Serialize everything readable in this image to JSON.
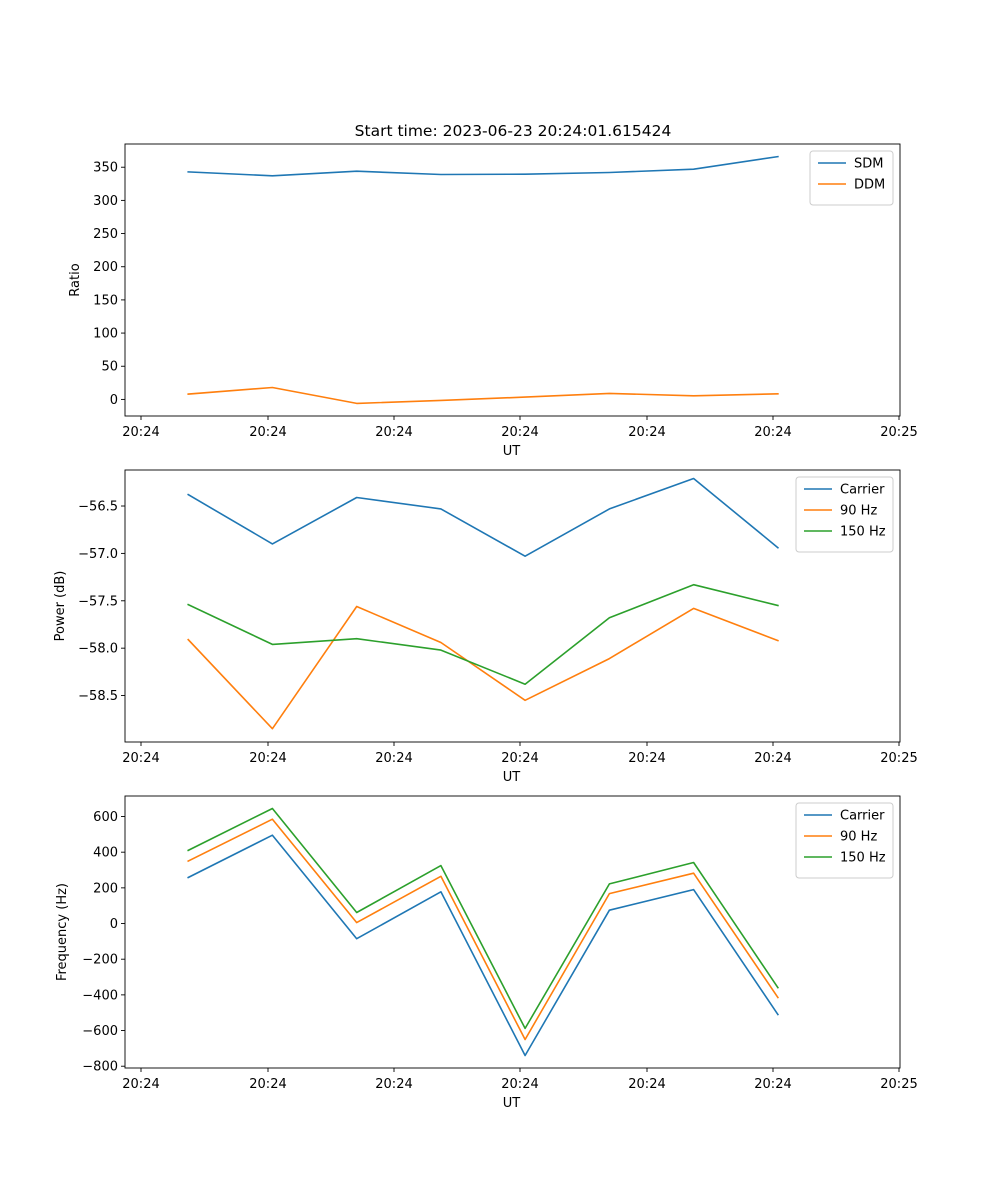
{
  "figure": {
    "title": "Start time: 2023-06-23 20:24:01.615424"
  },
  "chart_data": [
    {
      "type": "line",
      "title": "Start time: 2023-06-23 20:24:01.615424",
      "xlabel": "UT",
      "ylabel": "Ratio",
      "x_tick_labels": [
        "20:24",
        "20:24",
        "20:24",
        "20:24",
        "20:24",
        "20:24",
        "20:25"
      ],
      "y_ticks": [
        0,
        50,
        100,
        150,
        200,
        250,
        300,
        350
      ],
      "xlim": [
        0,
        9.2
      ],
      "ylim": [
        -25,
        385
      ],
      "legend": "top-right",
      "grid": false,
      "x": [
        0.75,
        1.75,
        2.75,
        3.75,
        4.75,
        5.75,
        6.75,
        7.75
      ],
      "series": [
        {
          "name": "SDM",
          "color": "#1f77b4",
          "values": [
            343,
            337,
            344,
            339,
            339.5,
            342,
            347,
            366
          ]
        },
        {
          "name": "DDM",
          "color": "#ff7f0e",
          "values": [
            8,
            18,
            -6,
            -1.5,
            3.5,
            9,
            5.5,
            8.5
          ]
        }
      ]
    },
    {
      "type": "line",
      "xlabel": "UT",
      "ylabel": "Power (dB)",
      "x_tick_labels": [
        "20:24",
        "20:24",
        "20:24",
        "20:24",
        "20:24",
        "20:24",
        "20:25"
      ],
      "y_ticks": [
        -56.5,
        -57.0,
        -57.5,
        -58.0,
        -58.5
      ],
      "y_tick_labels": [
        "−56.5",
        "−57.0",
        "−57.5",
        "−58.0",
        "−58.5"
      ],
      "xlim": [
        0,
        9.2
      ],
      "ylim": [
        -58.99,
        -56.12
      ],
      "legend": "top-right",
      "grid": false,
      "x": [
        0.75,
        1.75,
        2.75,
        3.75,
        4.75,
        5.75,
        6.75,
        7.75
      ],
      "series": [
        {
          "name": "Carrier",
          "color": "#1f77b4",
          "values": [
            -56.38,
            -56.9,
            -56.41,
            -56.53,
            -57.03,
            -56.53,
            -56.21,
            -56.94
          ]
        },
        {
          "name": "90 Hz",
          "color": "#ff7f0e",
          "values": [
            -57.91,
            -58.85,
            -57.56,
            -57.94,
            -58.55,
            -58.11,
            -57.58,
            -57.92
          ]
        },
        {
          "name": "150 Hz",
          "color": "#2ca02c",
          "values": [
            -57.54,
            -57.96,
            -57.9,
            -58.02,
            -58.38,
            -57.68,
            -57.33,
            -57.55
          ]
        }
      ]
    },
    {
      "type": "line",
      "xlabel": "UT",
      "ylabel": "Frequency (Hz)",
      "x_tick_labels": [
        "20:24",
        "20:24",
        "20:24",
        "20:24",
        "20:24",
        "20:24",
        "20:25"
      ],
      "y_ticks": [
        600,
        400,
        200,
        0,
        -200,
        -400,
        -600,
        -800
      ],
      "y_tick_labels": [
        "600",
        "400",
        "200",
        "0",
        "−200",
        "−400",
        "−600",
        "−800"
      ],
      "xlim": [
        0,
        9.2
      ],
      "ylim": [
        -810,
        715
      ],
      "legend": "top-right",
      "grid": false,
      "x": [
        0.75,
        1.75,
        2.75,
        3.75,
        4.75,
        5.75,
        6.75,
        7.75
      ],
      "series": [
        {
          "name": "Carrier",
          "color": "#1f77b4",
          "values": [
            258,
            495,
            -85,
            178,
            -740,
            75,
            190,
            -510
          ]
        },
        {
          "name": "90 Hz",
          "color": "#ff7f0e",
          "values": [
            350,
            585,
            5,
            265,
            -650,
            168,
            282,
            -415
          ]
        },
        {
          "name": "150 Hz",
          "color": "#2ca02c",
          "values": [
            410,
            645,
            62,
            325,
            -588,
            222,
            342,
            -360
          ]
        }
      ]
    }
  ]
}
